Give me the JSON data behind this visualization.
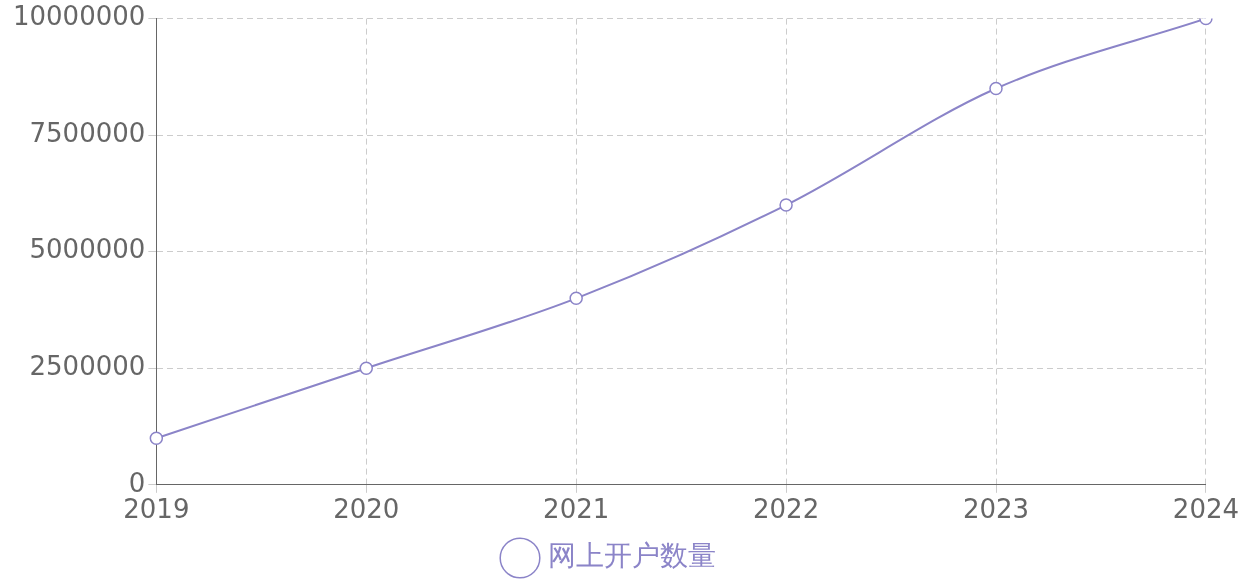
{
  "chart_data": {
    "type": "line",
    "categories": [
      "2019",
      "2020",
      "2021",
      "2022",
      "2023",
      "2024"
    ],
    "series": [
      {
        "name": "网上开户数量",
        "color": "#8b84c8",
        "values": [
          1000000,
          2500000,
          4000000,
          6000000,
          8500000,
          10000000
        ]
      }
    ],
    "ylim": [
      0,
      10000000
    ],
    "yticks": [
      0,
      2500000,
      5000000,
      7500000,
      10000000
    ],
    "grid": true,
    "legend": "bottom",
    "marker": "circle",
    "line_style": "solid"
  }
}
